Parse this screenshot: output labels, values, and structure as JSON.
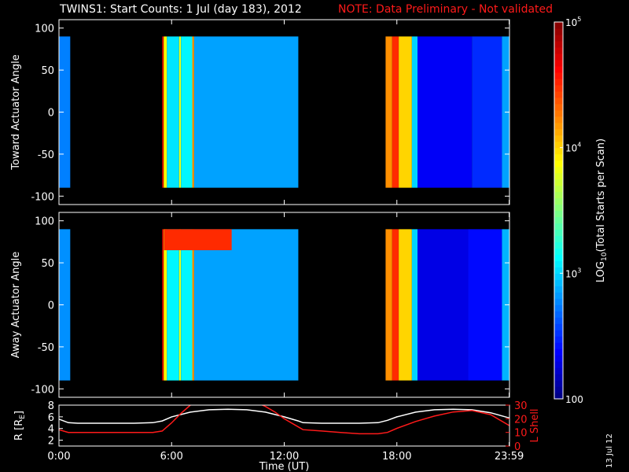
{
  "title": "TWINS1: Start Counts:  1 Jul (day 183), 2012",
  "note": "NOTE: Data Preliminary - Not validated",
  "date_stamp": "13 Jul 12",
  "colors": {
    "note": "#ff1a1a",
    "lshell": "#ff1a1a",
    "rshell": "#ffffff",
    "panel_bg": "#000000"
  },
  "chart_data": [
    {
      "type": "heatmap",
      "ylabel": "Toward Actuator Angle",
      "ylim": [
        -110,
        110
      ],
      "y_ticks": [
        "100",
        "50",
        "0",
        "-50",
        "-100"
      ],
      "y_range": [
        -90,
        90
      ],
      "x_range_hours": [
        0,
        24
      ],
      "coverage_hours": [
        [
          0,
          0.6
        ],
        [
          5.5,
          12.75
        ],
        [
          17.4,
          23.99
        ]
      ],
      "slices": [
        {
          "x0": 0.0,
          "x1": 0.6,
          "level": 2.75
        },
        {
          "x0": 5.5,
          "x1": 5.58,
          "level": 4.7
        },
        {
          "x0": 5.58,
          "x1": 5.75,
          "level": 3.9
        },
        {
          "x0": 5.75,
          "x1": 6.4,
          "level": 3.05
        },
        {
          "x0": 6.4,
          "x1": 6.5,
          "level": 3.8
        },
        {
          "x0": 6.5,
          "x1": 7.1,
          "level": 3.1
        },
        {
          "x0": 7.1,
          "x1": 7.2,
          "level": 4.2
        },
        {
          "x0": 7.2,
          "x1": 12.75,
          "level": 2.85
        },
        {
          "x0": 17.4,
          "x1": 17.75,
          "level": 4.2
        },
        {
          "x0": 17.75,
          "x1": 18.1,
          "level": 4.5
        },
        {
          "x0": 18.1,
          "x1": 18.8,
          "level": 4.0
        },
        {
          "x0": 18.8,
          "x1": 19.1,
          "level": 3.0
        },
        {
          "x0": 19.1,
          "x1": 22.0,
          "level": 2.35
        },
        {
          "x0": 22.0,
          "x1": 23.6,
          "level": 2.5
        },
        {
          "x0": 23.6,
          "x1": 23.99,
          "level": 2.85
        }
      ]
    },
    {
      "type": "heatmap",
      "ylabel": "Away Actuator Angle",
      "ylim": [
        -110,
        110
      ],
      "y_ticks": [
        "100",
        "50",
        "0",
        "-50",
        "-100"
      ],
      "y_range": [
        -90,
        90
      ],
      "x_range_hours": [
        0,
        24
      ],
      "coverage_hours": [
        [
          0,
          0.6
        ],
        [
          5.5,
          12.75
        ],
        [
          17.4,
          23.99
        ]
      ],
      "slices": [
        {
          "x0": 0.0,
          "x1": 0.6,
          "level": 2.8
        },
        {
          "x0": 5.5,
          "x1": 5.58,
          "level": 4.7
        },
        {
          "x0": 5.58,
          "x1": 5.75,
          "level": 3.9
        },
        {
          "x0": 5.75,
          "x1": 6.4,
          "level": 3.1
        },
        {
          "x0": 6.4,
          "x1": 6.5,
          "level": 3.8
        },
        {
          "x0": 6.5,
          "x1": 7.1,
          "level": 3.1
        },
        {
          "x0": 7.1,
          "x1": 7.2,
          "level": 4.2
        },
        {
          "x0": 7.2,
          "x1": 12.75,
          "level": 2.85
        },
        {
          "x0": 17.4,
          "x1": 17.75,
          "level": 4.2
        },
        {
          "x0": 17.75,
          "x1": 18.1,
          "level": 4.5
        },
        {
          "x0": 18.1,
          "x1": 18.8,
          "level": 4.0
        },
        {
          "x0": 18.8,
          "x1": 19.1,
          "level": 3.0
        },
        {
          "x0": 19.1,
          "x1": 21.8,
          "level": 2.3
        },
        {
          "x0": 21.8,
          "x1": 23.6,
          "level": 2.4
        },
        {
          "x0": 23.6,
          "x1": 23.99,
          "level": 2.9
        }
      ],
      "features": [
        {
          "x0": 5.6,
          "x1": 9.2,
          "y0": 65,
          "y1": 90,
          "level": 4.5
        }
      ]
    },
    {
      "type": "line",
      "xlabel": "Time (UT)",
      "x_ticks": [
        "0:00",
        "6:00",
        "12:00",
        "18:00",
        "23:59"
      ],
      "x_tick_hours": [
        0,
        6,
        12,
        18,
        23.983
      ],
      "ylabel_left": "R [RE]",
      "ylabel_left_main": "R [R",
      "ylabel_left_sub": "E",
      "ylabel_left_close": "]",
      "ylim_left": [
        1,
        8
      ],
      "y_ticks_left": [
        "2",
        "4",
        "6",
        "8"
      ],
      "ylabel_right": "L Shell",
      "ylim_right": [
        0,
        30
      ],
      "y_ticks_right": [
        "0",
        "10",
        "20",
        "30"
      ],
      "series": [
        {
          "axis": "left",
          "color": "#ffffff",
          "x": [
            0,
            0.5,
            1,
            2,
            3,
            4,
            5,
            5.5,
            6,
            7,
            8,
            9,
            10,
            11,
            12,
            12.75,
            13,
            14,
            15,
            16,
            17,
            17.5,
            18,
            19,
            20,
            21,
            22,
            23,
            23.99
          ],
          "y": [
            5.6,
            5.0,
            4.9,
            4.9,
            4.9,
            4.9,
            5.0,
            5.3,
            6.0,
            6.8,
            7.2,
            7.3,
            7.2,
            6.8,
            6.0,
            5.3,
            5.0,
            4.9,
            4.9,
            4.9,
            5.0,
            5.4,
            6.0,
            6.8,
            7.2,
            7.3,
            7.2,
            6.7,
            5.8
          ]
        },
        {
          "axis": "right",
          "color": "#ff1a1a",
          "x": [
            0,
            0.5,
            1,
            2,
            3,
            4,
            5,
            5.5,
            6,
            6.5,
            7,
            7.3,
            10.5,
            11,
            11.5,
            12,
            12.75,
            13,
            14,
            15,
            16,
            17,
            17.5,
            18,
            19,
            20,
            21,
            22,
            23,
            23.99
          ],
          "y": [
            12,
            10,
            10,
            10,
            10,
            10,
            10,
            11,
            17,
            24,
            30,
            32,
            32,
            29,
            25,
            20,
            14,
            12,
            11,
            10,
            9,
            9,
            10,
            13,
            18,
            22,
            25,
            26,
            23,
            15
          ]
        }
      ]
    },
    {
      "type": "colorbar",
      "label": "LOG10(Total Starts per Scan)",
      "label_main": "LOG",
      "label_sub": "10",
      "label_rest": "(Total Starts per Scan)",
      "scale": "log",
      "range": [
        100,
        100000
      ],
      "ticks": [
        {
          "value": 100,
          "base": "100",
          "exp": ""
        },
        {
          "value": 1000,
          "base": "10",
          "exp": "3"
        },
        {
          "value": 10000,
          "base": "10",
          "exp": "4"
        },
        {
          "value": 100000,
          "base": "10",
          "exp": "5"
        }
      ]
    }
  ]
}
